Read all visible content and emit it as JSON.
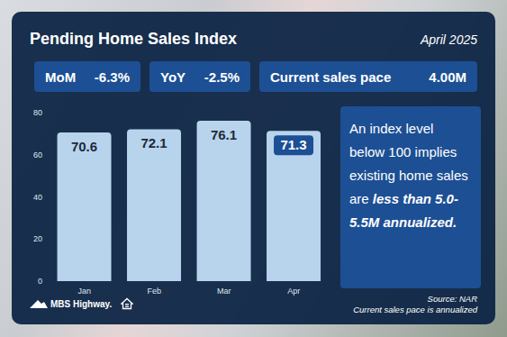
{
  "chart_data": {
    "type": "bar",
    "title": "Pending Home Sales Index",
    "subtitle": "April 2025",
    "categories": [
      "Jan",
      "Feb",
      "Mar",
      "Apr"
    ],
    "values": [
      70.6,
      72.1,
      76.1,
      71.3
    ],
    "color": "#b8d4ec",
    "ylim": [
      0,
      80
    ],
    "yticks": [
      0,
      20,
      40,
      60,
      80
    ],
    "grid": false,
    "data_labels": true
  },
  "stats": [
    {
      "label": "MoM",
      "value": "-6.3%"
    },
    {
      "label": "YoY",
      "value": "-2.5%"
    },
    {
      "label": "Current sales pace",
      "value": "4.00M"
    }
  ],
  "note": {
    "text": "An index level below 100 implies existing home sales are ",
    "emphasis": "less than 5.0-5.5M annualized."
  },
  "source": "Source: NAR",
  "footnote": "Current sales pace is annualized",
  "brand": "MBS Highway."
}
